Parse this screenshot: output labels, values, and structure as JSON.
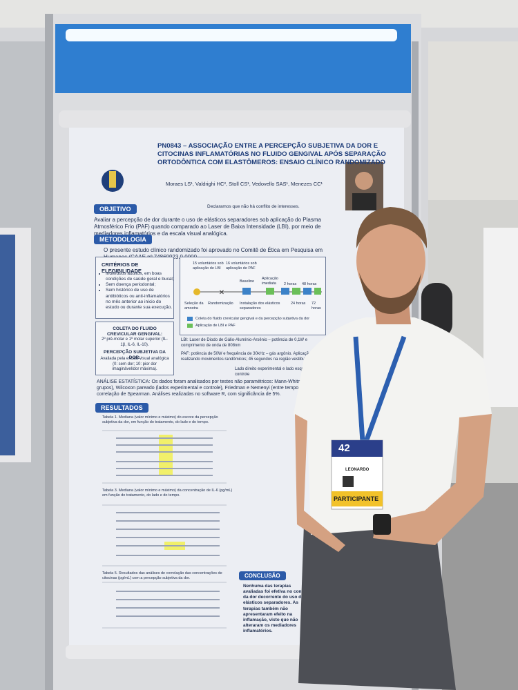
{
  "poster": {
    "code": "PN0843",
    "title": "ASSOCIAÇÃO ENTRE A PERCEPÇÃO SUBJETIVA DA DOR E CITOCINAS INFLAMATÓRIAS NO FLUIDO GENGIVAL APÓS SEPARAÇÃO ORTODÔNTICA COM ELASTÔMEROS: ENSAIO CLÍNICO RANDOMIZADO",
    "authors": "Moraes LS¹, Valdrighi HC², Stoll CS¹, Vedovello SAS¹, Menezes CC¹",
    "conflict": "Declaramos que não há conflito de interesses.",
    "objetivo": {
      "header": "OBJETIVO",
      "text": "Avaliar a percepção de dor durante o uso de elásticos separadores sob aplicação do Plasma Atmosférico Frio (PAF) quando comparado ao Laser de Baixa Intensidade (LBI), por meio de mediadores inflamatórios e da escala visual analógica."
    },
    "metodologia": {
      "header": "METODOLOGIA",
      "text": "O presente estudo clínico randomizado foi aprovado no Comitê de Ética em Pesquisa em Humanos (CAAE nº 74869923.0.0000",
      "criterios": {
        "title": "CRITÉRIOS DE ELEGIBILIDADE",
        "items": [
          "Indivíduos adultos, em boas condições de saúde geral e bucal;",
          "Sem doença periodontal;",
          "Sem histórico de uso de antibióticos ou anti-inflamatórios no mês anterior ao início do estudo ou durante sua execução."
        ]
      },
      "coleta": {
        "title": "COLETA DO FLUIDO CREVICULAR GENGIVAL:",
        "text": "2º pré-molar e 1º molar superior (IL-1β, IL-6, IL-10)."
      },
      "percepcao": {
        "title": "PERCEPÇÃO SUBJETIVA DA DOR:",
        "text": "Avaliada pela escala visual analógica (0: sem dor; 10: pior dor imaginável/dor máxima)."
      },
      "flow": [
        "15 voluntários sob aplicação de LBI",
        "16 voluntários sob aplicação de PAF",
        "Seleção da amostra",
        "Randomização",
        "Baseline",
        "Aplicação imediata",
        "2 horas",
        "24 horas",
        "48 horas",
        "72 horas",
        "Instalação dos elásticos separadores",
        "Coleta do fluido crevicular gengival e da percepção subjetiva da dor",
        "Aplicação de LBI e PAF"
      ],
      "lbi": "LBI: Laser de Diodo de Gálio-Alumínio-Arsênio – potência de 0,1W e comprimento de onda de 808nm",
      "paf": "PAF: potência de 50W e frequência de 30kHz – gás argônio. Aplicação realizando movimentos randômicos; 45 segundos na região vestibular",
      "lado": "Lado direito experimental e lado esquerdo controle"
    },
    "analise": "ANÁLISE ESTATÍSTICA: Os dados foram analisados por testes não paramétricos: Mann-Whitney (entre grupos), Wilcoxon pareado (lados experimental e controle), Friedman e Nemenyi (entre tempos), e correlação de Spearman. Análises realizadas no software R, com significância de 5%.",
    "resultados": {
      "header": "RESULTADOS",
      "tables": [
        "Tabela 1. Mediana (valor mínimo e máximo) do escore da percepção subjetiva da dor, em função do tratamento, do lado e do tempo.",
        "Tabela 3. Mediana (valor mínimo e máximo) da concentração de IL-6 (pg/mL) em função do tratamento, do lado e do tempo.",
        "Tabela 5. Resultados das análises de correlação das concentrações de citocinas (pg/mL) com a percepção subjetiva da dor."
      ]
    },
    "conclusao": {
      "header": "CONCLUSÃO",
      "text": "Nenhuma das terapias avaliadas foi efetiva no controle da dor decorrente do uso de elásticos separadores. As terapias também não apresentaram efeito na inflamação, visto que não alteraram os mediadores inflamatórios."
    }
  },
  "badge": {
    "number": "42",
    "name": "LEONARDO",
    "role": "PARTICIPANTE"
  }
}
